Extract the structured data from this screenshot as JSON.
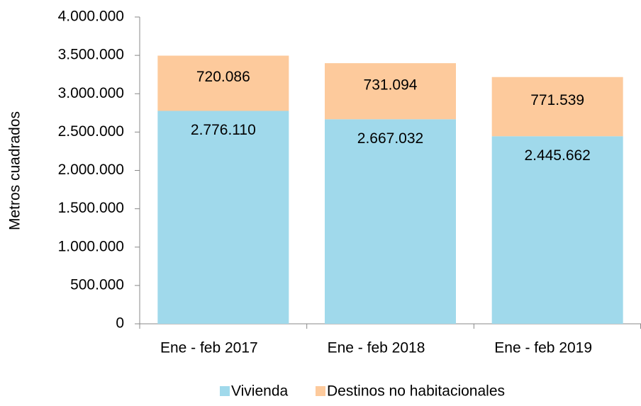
{
  "chart_data": {
    "type": "stacked_bar",
    "y_label": "Metros cuadrados",
    "categories": [
      "Ene - feb 2017",
      "Ene - feb 2018",
      "Ene - feb 2019"
    ],
    "series": [
      {
        "name": "Vivienda",
        "color": "#a0d9eb",
        "values": [
          2776110,
          2667032,
          2445662
        ],
        "value_labels": [
          "2.776.110",
          "2.667.032",
          "2.445.662"
        ]
      },
      {
        "name": "Destinos no habitacionales",
        "color": "#fdca9c",
        "values": [
          720086,
          731094,
          771539
        ],
        "value_labels": [
          "720.086",
          "731.094",
          "771.539"
        ]
      }
    ],
    "ylim": [
      0,
      4000000
    ],
    "yticks": [
      0,
      {
        "value": 500000,
        "label": "500.000"
      },
      {
        "value": 1000000,
        "label": "1.000.000"
      },
      {
        "value": 1500000,
        "label": "1.500.000"
      },
      {
        "value": 2000000,
        "label": "2.000.000"
      },
      {
        "value": 2500000,
        "label": "2.500.000"
      },
      {
        "value": 3000000,
        "label": "3.000.000"
      },
      {
        "value": 3500000,
        "label": "3.500.000"
      },
      {
        "value": 4000000,
        "label": "4.000.000"
      }
    ],
    "legend": "bottom"
  }
}
